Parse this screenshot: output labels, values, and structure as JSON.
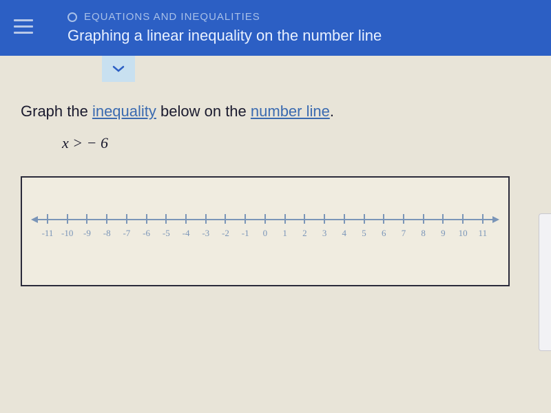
{
  "header": {
    "category": "EQUATIONS AND INEQUALITIES",
    "title": "Graphing a linear inequality on the number line"
  },
  "instruction": {
    "prefix": "Graph the ",
    "term1": "inequality",
    "middle": " below on the ",
    "term2": "number line",
    "suffix": "."
  },
  "inequality": "x > − 6",
  "numberline": {
    "ticks": [
      "-11",
      "-10",
      "-9",
      "-8",
      "-7",
      "-6",
      "-5",
      "-4",
      "-3",
      "-2",
      "-1",
      "0",
      "1",
      "2",
      "3",
      "4",
      "5",
      "6",
      "7",
      "8",
      "9",
      "10",
      "11"
    ],
    "axis_color": "#7a95b8",
    "label_color": "#7a95b8"
  },
  "colors": {
    "header_bg": "#2c5fc4",
    "page_bg": "#e8e4d8",
    "link": "#3a6ab0"
  }
}
